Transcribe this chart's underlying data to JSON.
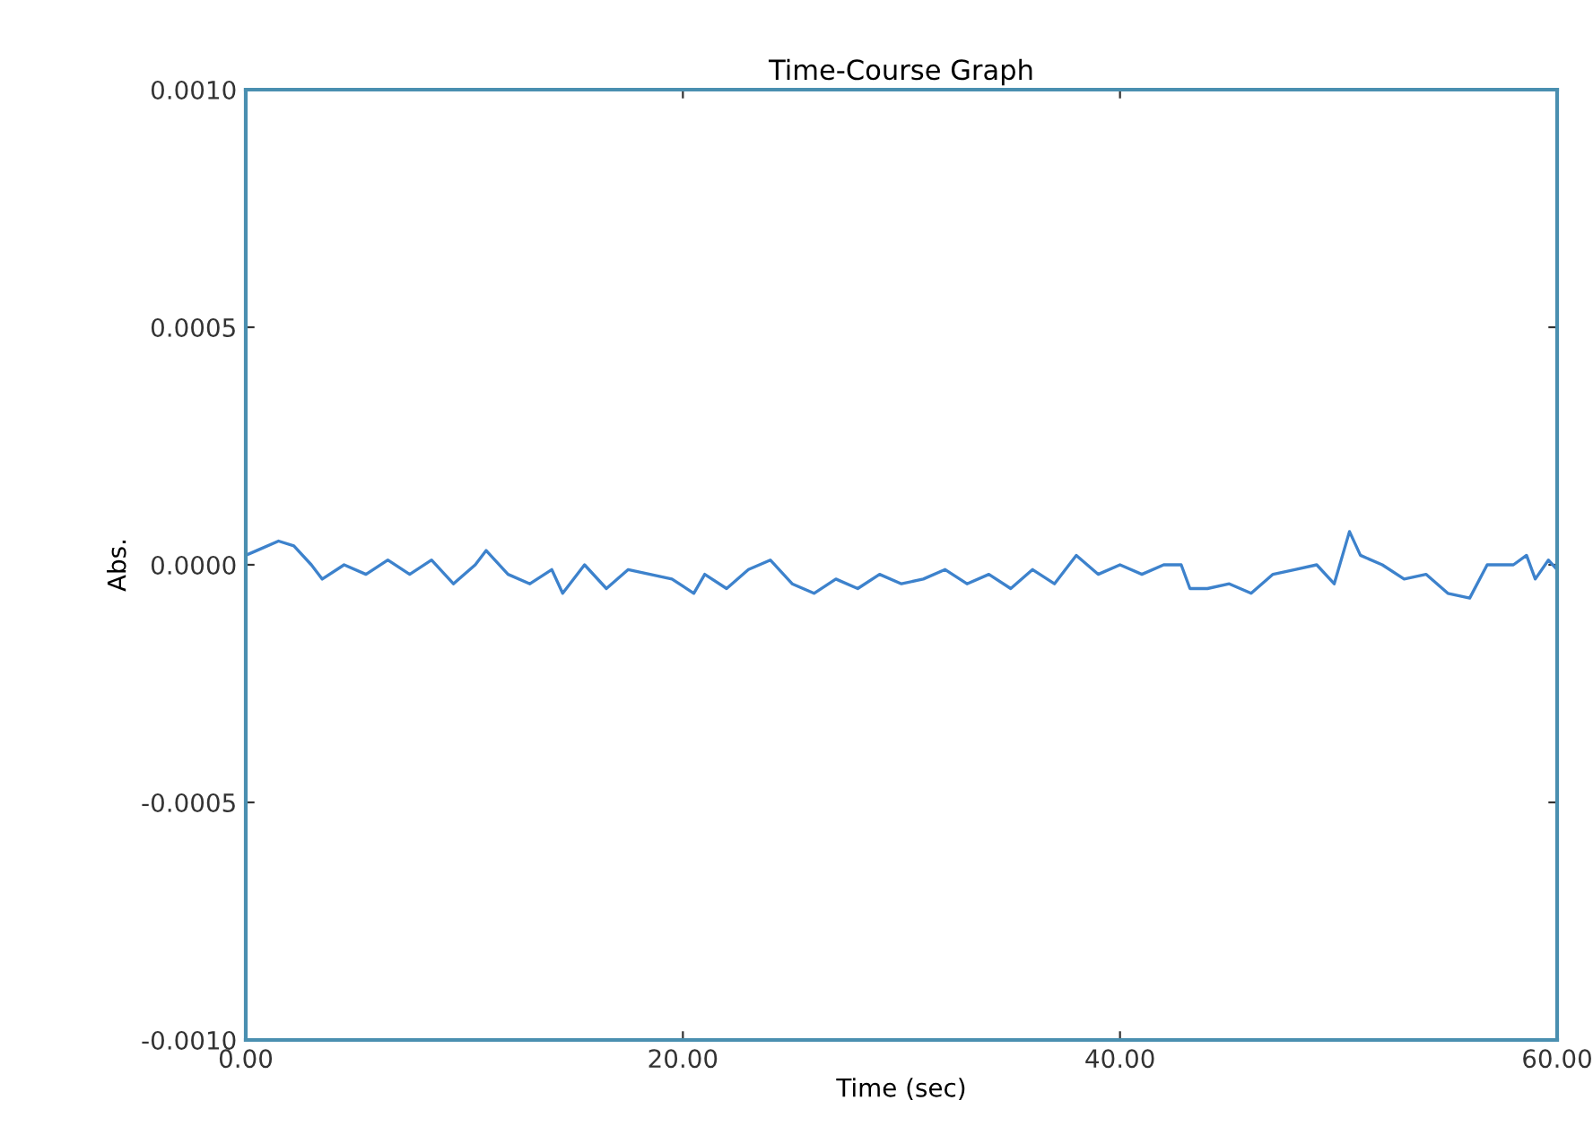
{
  "chart_data": {
    "type": "line",
    "title": "Time-Course Graph",
    "xlabel": "Time (sec)",
    "ylabel": "Abs.",
    "series": [
      {
        "color": "#3d82cc",
        "x": [
          0,
          0.5,
          1.5,
          2.2,
          3,
          3.5,
          4.5,
          5.5,
          6.5,
          7.5,
          8.5,
          9.5,
          10.5,
          11,
          12,
          13,
          14,
          14.5,
          15.5,
          16.5,
          17.5,
          18.5,
          19.5,
          20.5,
          21,
          22,
          23,
          24,
          25,
          26,
          27,
          28,
          29,
          30,
          31,
          32,
          33,
          34,
          35,
          36,
          37,
          38,
          39,
          40,
          41,
          42,
          42.8,
          43.2,
          44,
          45,
          46,
          47,
          48,
          49,
          49.8,
          50.5,
          51,
          52,
          53,
          54,
          55,
          56,
          56.8,
          58,
          58.6,
          59,
          59.6,
          60
        ],
        "values": [
          2e-05,
          3e-05,
          5e-05,
          4e-05,
          0.0,
          -3e-05,
          0.0,
          -2e-05,
          1e-05,
          -2e-05,
          1e-05,
          -4e-05,
          0.0,
          3e-05,
          -2e-05,
          -4e-05,
          -1e-05,
          -6e-05,
          0.0,
          -5e-05,
          -1e-05,
          -2e-05,
          -3e-05,
          -6e-05,
          -2e-05,
          -5e-05,
          -1e-05,
          1e-05,
          -4e-05,
          -6e-05,
          -3e-05,
          -5e-05,
          -2e-05,
          -4e-05,
          -3e-05,
          -1e-05,
          -4e-05,
          -2e-05,
          -5e-05,
          -1e-05,
          -4e-05,
          2e-05,
          -2e-05,
          0.0,
          -2e-05,
          0.0,
          0.0,
          -5e-05,
          -5e-05,
          -4e-05,
          -6e-05,
          -2e-05,
          -1e-05,
          0.0,
          -4e-05,
          7e-05,
          2e-05,
          0.0,
          -3e-05,
          -2e-05,
          -6e-05,
          -7e-05,
          0.0,
          0.0,
          2e-05,
          -3e-05,
          1e-05,
          -1e-05
        ]
      }
    ],
    "xlim": [
      0,
      60
    ],
    "ylim": [
      -0.001,
      0.001
    ],
    "xticks": [
      {
        "value": 0,
        "label": "0.00"
      },
      {
        "value": 20,
        "label": "20.00"
      },
      {
        "value": 40,
        "label": "40.00"
      },
      {
        "value": 60,
        "label": "60.00"
      }
    ],
    "yticks": [
      {
        "value": -0.001,
        "label": "-0.0010"
      },
      {
        "value": -0.0005,
        "label": "-0.0005"
      },
      {
        "value": 0,
        "label": "0.0000"
      },
      {
        "value": 0.0005,
        "label": "0.0005"
      },
      {
        "value": 0.001,
        "label": "0.0010"
      }
    ],
    "grid": false,
    "marker": "none",
    "line_style": "solid"
  }
}
